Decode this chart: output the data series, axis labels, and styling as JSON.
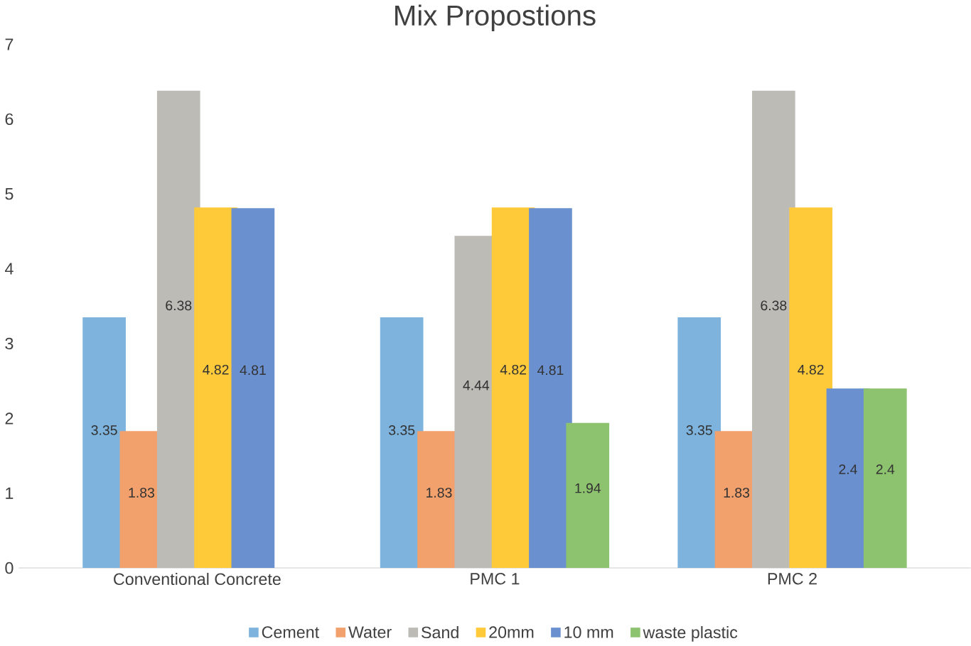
{
  "chart_data": {
    "type": "bar",
    "title": "Mix Propostions",
    "categories": [
      "Conventional Concrete",
      "PMC 1",
      "PMC 2"
    ],
    "series": [
      {
        "name": "Cement",
        "color": "#7db3dc",
        "values": [
          3.35,
          3.35,
          3.35
        ]
      },
      {
        "name": "Water",
        "color": "#f2a06c",
        "values": [
          1.83,
          1.83,
          1.83
        ]
      },
      {
        "name": "Sand",
        "color": "#bdbbb6",
        "values": [
          6.38,
          4.44,
          6.38
        ]
      },
      {
        "name": "20mm",
        "color": "#ffca3a",
        "values": [
          4.82,
          4.82,
          4.82
        ]
      },
      {
        "name": "10 mm",
        "color": "#6a90d0",
        "values": [
          4.81,
          4.81,
          2.4
        ]
      },
      {
        "name": "waste plastic",
        "color": "#8dc26e",
        "values": [
          null,
          1.94,
          2.4
        ]
      }
    ],
    "ylim": [
      0,
      7
    ],
    "yticks": [
      0,
      1,
      2,
      3,
      4,
      5,
      6,
      7
    ],
    "data_labels": true,
    "legend": "bottom"
  }
}
